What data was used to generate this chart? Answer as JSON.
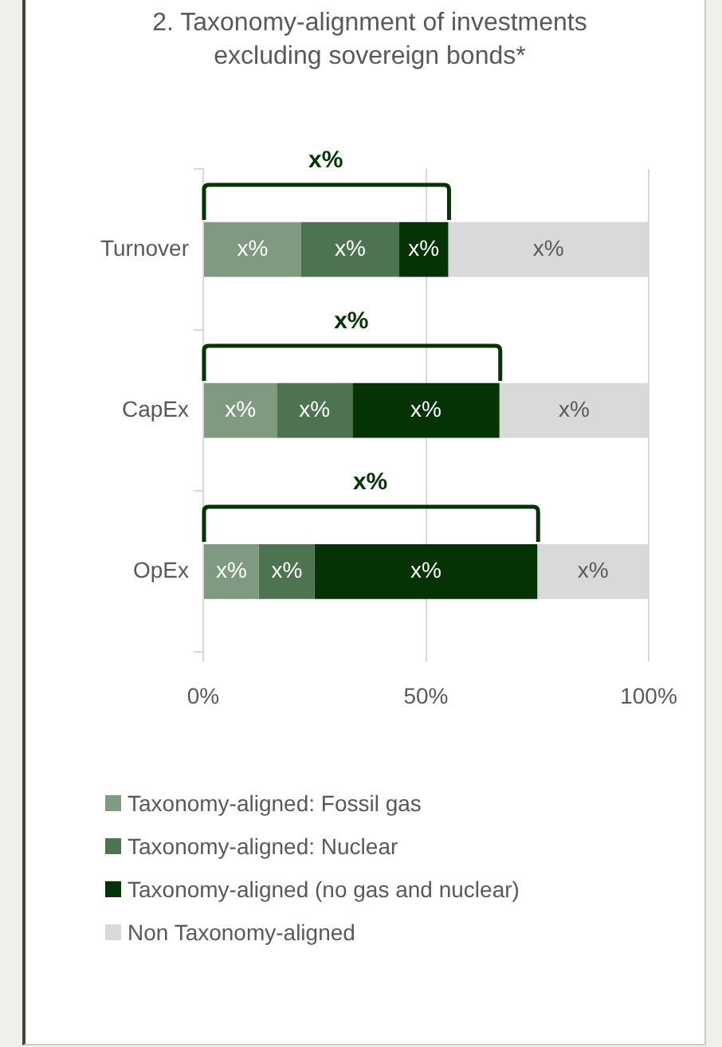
{
  "chart_data": {
    "type": "bar",
    "orientation": "horizontal",
    "stacked": true,
    "title": "2. Taxonomy-alignment of investments excluding sovereign bonds*",
    "categories": [
      "Turnover",
      "CapEx",
      "OpEx"
    ],
    "series": [
      {
        "name": "Taxonomy-aligned: Fossil gas",
        "color": "#7f9a80",
        "values": [
          22,
          16.5,
          12.5
        ],
        "value_labels": [
          "x%",
          "x%",
          "x%"
        ]
      },
      {
        "name": "Taxonomy-aligned: Nuclear",
        "color": "#4e7350",
        "values": [
          22,
          17,
          12.5
        ],
        "value_labels": [
          "x%",
          "x%",
          "x%"
        ]
      },
      {
        "name": "Taxonomy-aligned (no gas and nuclear)",
        "color": "#063306",
        "values": [
          11,
          33,
          50
        ],
        "value_labels": [
          "x%",
          "x%",
          "x%"
        ]
      },
      {
        "name": "Non Taxonomy-aligned",
        "color": "#d9d9d9",
        "values": [
          45,
          33.5,
          25
        ],
        "value_labels": [
          "x%",
          "x%",
          "x%"
        ]
      }
    ],
    "xlim": [
      0,
      100
    ],
    "xticks": [
      {
        "value": 0,
        "label": "0%"
      },
      {
        "value": 50,
        "label": "50%"
      },
      {
        "value": 100,
        "label": "100%"
      }
    ],
    "annotations": [
      "x%",
      "x%",
      "x%"
    ],
    "grid": "x",
    "legend": "bottom"
  }
}
